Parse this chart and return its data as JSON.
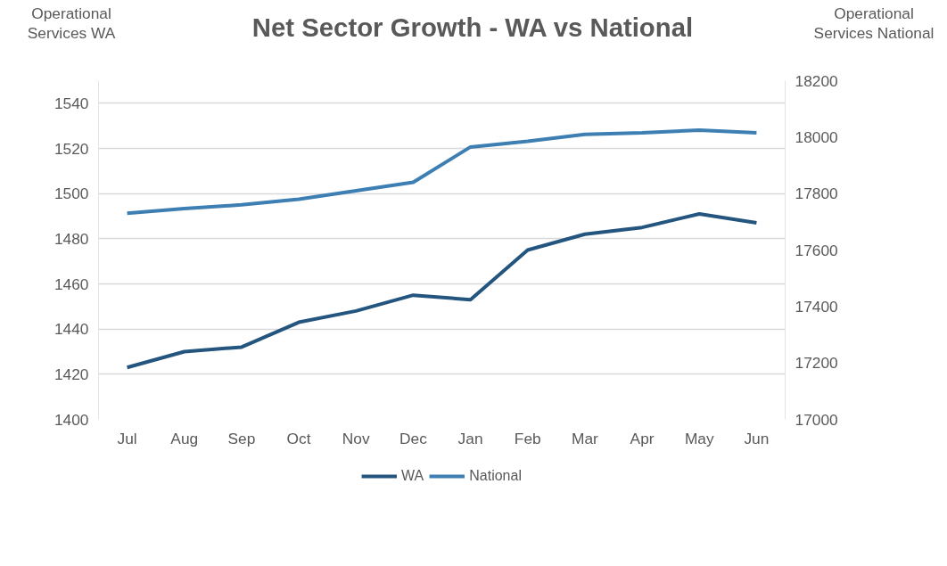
{
  "chart_data": {
    "type": "line",
    "title": "Net Sector Growth - WA vs National",
    "ylabel": "Operational\nServices  WA",
    "y2label": "Operational\nServices  National",
    "categories": [
      "Jul",
      "Aug",
      "Sep",
      "Oct",
      "Nov",
      "Dec",
      "Jan",
      "Feb",
      "Mar",
      "Apr",
      "May",
      "Jun"
    ],
    "series": [
      {
        "name": "WA",
        "color": "#24557f",
        "values": [
          1423,
          1430,
          1432,
          1443,
          1448,
          1455,
          1453,
          1475,
          1482,
          1485,
          1491,
          1487
        ]
      },
      {
        "name": "National",
        "color": "#3d7fb3",
        "axis": "y2",
        "values": [
          17730,
          17747,
          17760,
          17780,
          17810,
          17840,
          17965,
          17985,
          18010,
          18015,
          18025,
          18015
        ]
      }
    ],
    "ylim": [
      1400,
      1550
    ],
    "yticks": [
      1400,
      1420,
      1440,
      1460,
      1480,
      1500,
      1520,
      1540
    ],
    "y2lim": [
      17000,
      18200
    ],
    "y2ticks": [
      17000,
      17200,
      17400,
      17600,
      17800,
      18000,
      18200
    ],
    "grid": "y",
    "legend": "bottom",
    "marker": "none",
    "line_style": "solid"
  }
}
